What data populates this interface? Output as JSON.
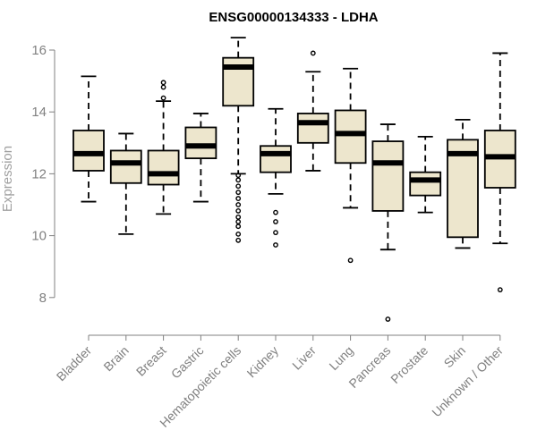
{
  "chart_data": {
    "type": "boxplot",
    "title": "ENSG00000134333 - LDHA",
    "xlabel": "",
    "ylabel": "Expression",
    "ylim": [
      7.0,
      16.6
    ],
    "yticks": [
      8,
      10,
      12,
      14,
      16
    ],
    "grid": false,
    "legend": "none",
    "box_fill": "#ede6cd",
    "categories": [
      "Bladder",
      "Brain",
      "Breast",
      "Gastric",
      "Hematopoietic cells",
      "Kidney",
      "Liver",
      "Lung",
      "Pancreas",
      "Prostate",
      "Skin",
      "Unknown / Other"
    ],
    "boxes": [
      {
        "category": "Bladder",
        "whisker_low": 11.1,
        "q1": 12.1,
        "median": 12.65,
        "q3": 13.4,
        "whisker_high": 15.15,
        "outliers": []
      },
      {
        "category": "Brain",
        "whisker_low": 10.05,
        "q1": 11.7,
        "median": 12.35,
        "q3": 12.75,
        "whisker_high": 13.3,
        "outliers": []
      },
      {
        "category": "Breast",
        "whisker_low": 10.7,
        "q1": 11.65,
        "median": 12.0,
        "q3": 12.75,
        "whisker_high": 14.35,
        "outliers": [
          14.45,
          14.8,
          14.95
        ]
      },
      {
        "category": "Gastric",
        "whisker_low": 11.1,
        "q1": 12.5,
        "median": 12.9,
        "q3": 13.5,
        "whisker_high": 13.95,
        "outliers": []
      },
      {
        "category": "Hematopoietic cells",
        "whisker_low": 12.0,
        "q1": 14.2,
        "median": 15.45,
        "q3": 15.75,
        "whisker_high": 16.4,
        "outliers": [
          11.95,
          11.8,
          11.6,
          11.4,
          11.2,
          11.0,
          10.8,
          10.6,
          10.45,
          10.3,
          10.05,
          9.85
        ]
      },
      {
        "category": "Kidney",
        "whisker_low": 11.35,
        "q1": 12.05,
        "median": 12.65,
        "q3": 12.9,
        "whisker_high": 14.1,
        "outliers": [
          10.75,
          10.45,
          10.1,
          9.7
        ]
      },
      {
        "category": "Liver",
        "whisker_low": 12.1,
        "q1": 13.0,
        "median": 13.65,
        "q3": 13.95,
        "whisker_high": 15.3,
        "outliers": [
          15.9
        ]
      },
      {
        "category": "Lung",
        "whisker_low": 10.9,
        "q1": 12.35,
        "median": 13.3,
        "q3": 14.05,
        "whisker_high": 15.4,
        "outliers": [
          9.2
        ]
      },
      {
        "category": "Pancreas",
        "whisker_low": 9.55,
        "q1": 10.8,
        "median": 12.35,
        "q3": 13.05,
        "whisker_high": 13.6,
        "outliers": [
          7.3
        ]
      },
      {
        "category": "Prostate",
        "whisker_low": 10.75,
        "q1": 11.3,
        "median": 11.8,
        "q3": 12.05,
        "whisker_high": 13.2,
        "outliers": []
      },
      {
        "category": "Skin",
        "whisker_low": 9.6,
        "q1": 9.95,
        "median": 12.65,
        "q3": 13.1,
        "whisker_high": 13.75,
        "outliers": []
      },
      {
        "category": "Unknown / Other",
        "whisker_low": 9.75,
        "q1": 11.55,
        "median": 12.55,
        "q3": 13.4,
        "whisker_high": 15.9,
        "outliers": [
          8.25
        ]
      }
    ]
  }
}
